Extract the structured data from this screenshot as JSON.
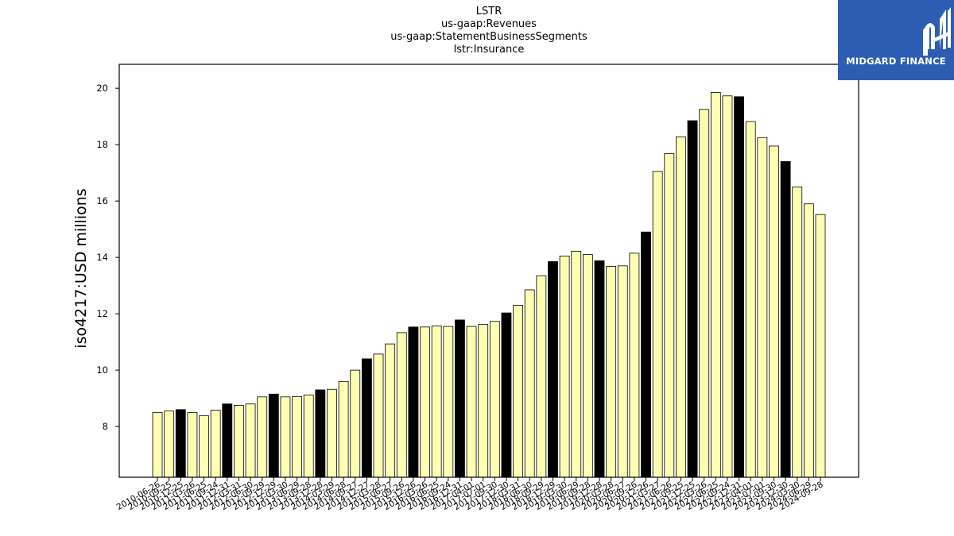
{
  "header": {
    "title_lines": [
      "LSTR",
      "us-gaap:Revenues",
      "us-gaap:StatementBusinessSegments",
      "lstr:Insurance"
    ]
  },
  "logo": {
    "text": "MIDGARD FINANCE",
    "icon": "midgard-logo-icon",
    "background": "#2c5db2"
  },
  "chart_data": {
    "type": "bar",
    "title": "LSTR\nus-gaap:Revenues\nus-gaap:StatementBusinessSegments\nlstr:Insurance",
    "xlabel": "",
    "ylabel": "iso4217:USD  millions",
    "ylim": [
      6.2,
      20.85
    ],
    "yticks": [
      8,
      10,
      12,
      14,
      16,
      18,
      20
    ],
    "grid": false,
    "colors": {
      "regular": "#ffffb3",
      "year_end": "#000000",
      "edge": "#000000"
    },
    "categories": [
      "2010-06-26",
      "2010-09-25",
      "2010-12-25",
      "2011-03-26",
      "2011-06-25",
      "2011-09-24",
      "2011-12-31",
      "2012-03-31",
      "2012-06-30",
      "2012-09-29",
      "2012-12-29",
      "2013-03-30",
      "2013-06-29",
      "2013-09-28",
      "2013-12-28",
      "2014-03-29",
      "2014-06-28",
      "2014-09-27",
      "2014-12-27",
      "2015-03-28",
      "2015-06-27",
      "2015-09-26",
      "2015-12-26",
      "2016-03-26",
      "2016-06-25",
      "2016-09-24",
      "2016-12-31",
      "2017-04-01",
      "2017-07-01",
      "2017-09-30",
      "2017-12-30",
      "2018-03-31",
      "2018-06-30",
      "2018-09-29",
      "2018-12-29",
      "2019-03-30",
      "2019-06-29",
      "2019-09-28",
      "2019-12-28",
      "2020-03-28",
      "2020-06-27",
      "2020-09-26",
      "2020-12-26",
      "2021-03-27",
      "2021-06-26",
      "2021-09-25",
      "2021-12-25",
      "2022-03-26",
      "2022-06-25",
      "2022-09-24",
      "2022-12-31",
      "2023-04-01",
      "2023-07-01",
      "2023-09-30",
      "2023-12-30",
      "2024-03-30",
      "2024-06-29",
      "2024-09-28"
    ],
    "tick_labels": [
      "2010-06-26",
      "2010-09-25",
      "2010-12-25",
      "2011-03-26",
      "2011-06-25",
      "2011-09-24",
      "2011-12-31",
      "2012-03-31",
      "2012-06-30",
      "2012-09-29",
      "2012-12-29",
      "2013-03-30",
      "2013-06-29",
      "2013-09-28",
      "2013-12-28",
      "2014-03-29",
      "2014-06-28",
      "2014-09-27",
      "2014-12-27",
      "2015-03-28",
      "2015-06-27",
      "2015-09-26",
      "2015-12-26",
      "2016-03-26",
      "2016-06-25",
      "2016-09-24",
      "2016-12-31",
      "2017-04-01",
      "2017-07-01",
      "2017-09-30",
      "2017-12-30",
      "2018-03-31",
      "2018-06-30",
      "2018-09-29",
      "2018-12-29",
      "2019-03-30",
      "2019-06-29",
      "2019-09-28",
      "2019-12-28",
      "2020-03-28",
      "2020-06-27",
      "2020-09-26",
      "2020-12-26",
      "2021-03-27",
      "2021-06-26",
      "2021-09-25",
      "2021-12-25",
      "2022-03-26",
      "2022-06-25",
      "2022-09-24",
      "2022-12-31",
      "2023-04-01",
      "2023-07-01",
      "2023-09-30",
      "2023-12-30",
      "2024-03-30",
      "2024-06-29",
      "2024-09-28"
    ],
    "values": [
      8.5,
      8.55,
      8.6,
      8.5,
      8.38,
      8.58,
      8.8,
      8.75,
      8.8,
      9.05,
      9.15,
      9.05,
      9.06,
      9.12,
      9.3,
      9.32,
      9.6,
      10.0,
      10.4,
      10.57,
      10.93,
      11.33,
      11.53,
      11.53,
      11.57,
      11.55,
      11.78,
      11.55,
      11.62,
      11.73,
      12.03,
      12.3,
      12.85,
      13.35,
      13.85,
      14.05,
      14.22,
      14.1,
      13.88,
      13.68,
      13.7,
      14.15,
      14.9,
      17.05,
      17.68,
      18.28,
      18.85,
      19.25,
      19.85,
      19.73,
      19.7,
      18.82,
      18.25,
      17.95,
      17.4,
      16.5,
      15.9,
      15.52
    ],
    "highlight": [
      false,
      false,
      true,
      false,
      false,
      false,
      true,
      false,
      false,
      false,
      true,
      false,
      false,
      false,
      true,
      false,
      false,
      false,
      true,
      false,
      false,
      false,
      true,
      false,
      false,
      false,
      true,
      false,
      false,
      false,
      true,
      false,
      false,
      false,
      true,
      false,
      false,
      false,
      true,
      false,
      false,
      false,
      true,
      false,
      false,
      false,
      true,
      false,
      false,
      false,
      true,
      false,
      false,
      false,
      true,
      false,
      false,
      false
    ]
  }
}
